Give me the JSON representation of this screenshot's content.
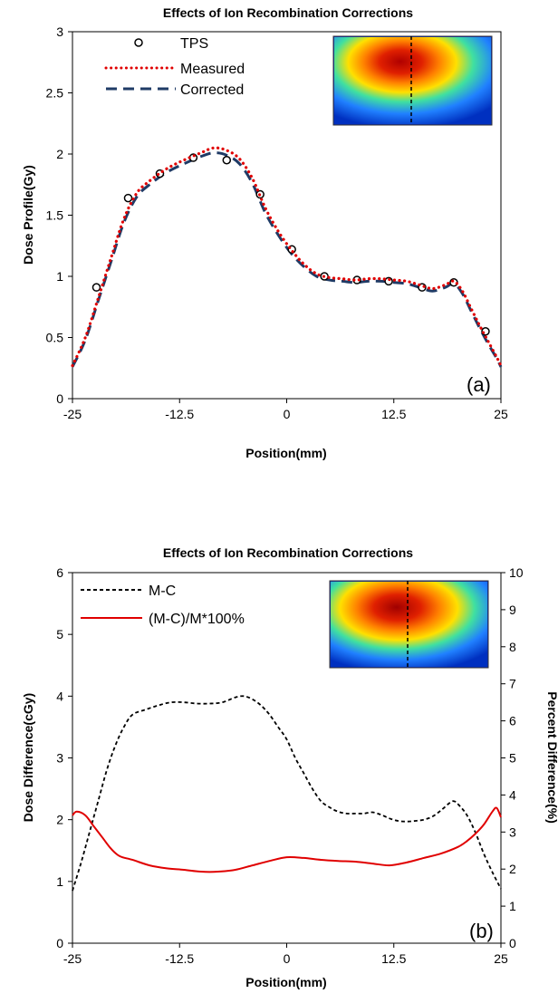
{
  "colors": {
    "measured": "#e00000",
    "corrected": "#1f3b66",
    "mc": "#000000",
    "pct": "#e00000",
    "tps": "#000000"
  },
  "chart_data": [
    {
      "type": "line",
      "title": "Effects of Ion Recombination Corrections",
      "xlabel": "Position(mm)",
      "ylabel": "Dose Profile(Gy)",
      "xlim": [
        -25,
        25
      ],
      "ylim": [
        0,
        3
      ],
      "xticks": [
        "-25",
        "-12.5",
        "0",
        "12.5",
        "25"
      ],
      "xtick_values": [
        -25,
        -12.5,
        0,
        12.5,
        25
      ],
      "yticks": [
        "0",
        "0.5",
        "1",
        "1.5",
        "2",
        "2.5",
        "3"
      ],
      "ytick_values": [
        0,
        0.5,
        1,
        1.5,
        2,
        2.5,
        3
      ],
      "panel_label": "(a)",
      "legend_position": "top-left",
      "series": [
        {
          "name": "TPS",
          "style": "markers",
          "x": [
            -22.2,
            -18.5,
            -14.8,
            -10.9,
            -7,
            -3.1,
            0.6,
            4.4,
            8.2,
            11.9,
            15.8,
            19.5,
            23.2
          ],
          "y": [
            0.91,
            1.64,
            1.84,
            1.97,
            1.95,
            1.67,
            1.22,
            1.0,
            0.97,
            0.96,
            0.91,
            0.95,
            0.55
          ]
        },
        {
          "name": "Measured",
          "style": "dotted",
          "x": [
            -25,
            -23.5,
            -22,
            -20.5,
            -19,
            -17.5,
            -16,
            -14,
            -12,
            -10,
            -8.5,
            -7,
            -5.5,
            -4,
            -2.5,
            -1,
            0.5,
            2,
            3.5,
            5,
            6.5,
            8,
            9.5,
            11,
            12.5,
            14,
            15.5,
            17,
            18.5,
            19.5,
            20.5,
            21.5,
            22.5,
            23.5,
            24.5,
            25
          ],
          "y": [
            0.27,
            0.5,
            0.82,
            1.15,
            1.47,
            1.68,
            1.78,
            1.88,
            1.95,
            2.01,
            2.05,
            2.03,
            1.96,
            1.8,
            1.56,
            1.37,
            1.22,
            1.1,
            1.02,
            0.99,
            0.98,
            0.97,
            0.98,
            0.98,
            0.97,
            0.96,
            0.93,
            0.9,
            0.93,
            0.96,
            0.88,
            0.74,
            0.6,
            0.47,
            0.34,
            0.27
          ]
        },
        {
          "name": "Corrected",
          "style": "dashed",
          "x": [
            -25,
            -23.5,
            -22,
            -20.5,
            -19,
            -17.5,
            -16,
            -14,
            -12,
            -10,
            -8.5,
            -7,
            -5.5,
            -4,
            -2.5,
            -1,
            0.5,
            2,
            3.5,
            5,
            6.5,
            8,
            9.5,
            11,
            12.5,
            14,
            15.5,
            17,
            18.5,
            19.5,
            20.5,
            21.5,
            22.5,
            23.5,
            24.5,
            25
          ],
          "y": [
            0.26,
            0.48,
            0.8,
            1.12,
            1.44,
            1.65,
            1.75,
            1.85,
            1.92,
            1.98,
            2.01,
            1.99,
            1.92,
            1.76,
            1.52,
            1.34,
            1.19,
            1.08,
            1.0,
            0.97,
            0.96,
            0.95,
            0.96,
            0.96,
            0.95,
            0.94,
            0.91,
            0.88,
            0.91,
            0.94,
            0.86,
            0.72,
            0.58,
            0.45,
            0.33,
            0.26
          ]
        }
      ]
    },
    {
      "type": "line",
      "title": "Effects of Ion Recombination Corrections",
      "xlabel": "Position(mm)",
      "ylabel": "Dose Difference(cGy)",
      "y2label": "Percent Difference(%)",
      "xlim": [
        -25,
        25
      ],
      "ylim": [
        0,
        6
      ],
      "y2lim": [
        0,
        10
      ],
      "xticks": [
        "-25",
        "-12.5",
        "0",
        "12.5",
        "25"
      ],
      "xtick_values": [
        -25,
        -12.5,
        0,
        12.5,
        25
      ],
      "yticks": [
        "0",
        "1",
        "2",
        "3",
        "4",
        "5",
        "6"
      ],
      "ytick_values": [
        0,
        1,
        2,
        3,
        4,
        5,
        6
      ],
      "y2ticks": [
        "0",
        "1",
        "2",
        "3",
        "4",
        "5",
        "6",
        "7",
        "8",
        "9",
        "10"
      ],
      "y2tick_values": [
        0,
        1,
        2,
        3,
        4,
        5,
        6,
        7,
        8,
        9,
        10
      ],
      "panel_label": "(b)",
      "legend_position": "top-left",
      "series": [
        {
          "name": "M-C",
          "axis": "left",
          "style": "dashed",
          "x": [
            -25,
            -24,
            -23,
            -22,
            -21,
            -20,
            -19,
            -18,
            -16.5,
            -15,
            -13.5,
            -12,
            -10.5,
            -9,
            -7.5,
            -6,
            -5,
            -4,
            -3,
            -2,
            -1,
            0,
            1,
            2,
            3,
            4,
            5,
            6,
            7,
            8,
            9,
            10,
            11,
            12,
            13,
            14,
            15,
            16,
            17,
            18,
            19,
            19.5,
            20,
            21,
            22,
            23,
            24,
            25
          ],
          "y": [
            0.85,
            1.3,
            1.8,
            2.3,
            2.8,
            3.2,
            3.5,
            3.7,
            3.78,
            3.85,
            3.9,
            3.9,
            3.88,
            3.88,
            3.9,
            3.98,
            4.0,
            3.95,
            3.85,
            3.7,
            3.5,
            3.3,
            3.0,
            2.75,
            2.5,
            2.3,
            2.2,
            2.13,
            2.1,
            2.1,
            2.1,
            2.12,
            2.08,
            2.02,
            1.98,
            1.97,
            1.98,
            2.0,
            2.05,
            2.15,
            2.27,
            2.3,
            2.25,
            2.08,
            1.8,
            1.45,
            1.15,
            0.88
          ]
        },
        {
          "name": "(M-C)/M*100%",
          "axis": "right",
          "style": "solid",
          "x": [
            -25,
            -24.5,
            -23.5,
            -22.5,
            -21.5,
            -20.5,
            -19.5,
            -18,
            -16,
            -14,
            -12,
            -10,
            -8,
            -6,
            -4,
            -2,
            0,
            2,
            4,
            6,
            8,
            10,
            12,
            14,
            16,
            18,
            20,
            21,
            22,
            23,
            24,
            24.5,
            25
          ],
          "y": [
            3.45,
            3.55,
            3.45,
            3.15,
            2.85,
            2.55,
            2.35,
            2.25,
            2.1,
            2.02,
            1.98,
            1.93,
            1.93,
            1.98,
            2.1,
            2.22,
            2.32,
            2.3,
            2.25,
            2.22,
            2.2,
            2.15,
            2.1,
            2.18,
            2.3,
            2.42,
            2.6,
            2.75,
            2.95,
            3.2,
            3.55,
            3.65,
            3.4
          ]
        }
      ]
    }
  ]
}
